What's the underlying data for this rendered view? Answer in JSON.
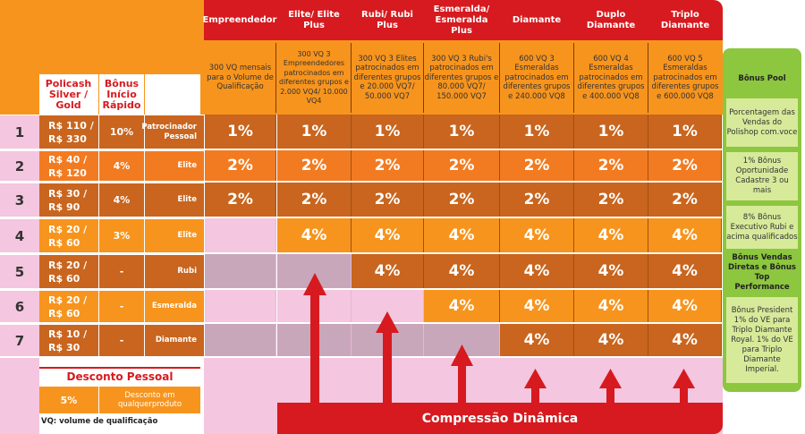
{
  "columns": [
    {
      "name": "Empreendedor",
      "requirement": "300 VQ mensais para o Volume de Qualificação"
    },
    {
      "name": "Elite/ Elite Plus",
      "requirement": "300 VQ 3 Empreendedores patrocinados em diferentes grupos e 2.000 VQ4/ 10.000 VQ4"
    },
    {
      "name": "Rubi/ Rubi Plus",
      "requirement": "300 VQ 3 Elites patrocinados em diferentes grupos e 20.000 VQ7/ 50.000 VQ7"
    },
    {
      "name": "Esmeralda/ Esmeralda Plus",
      "requirement": "300 VQ 3 Rubi's patrocinados em diferentes grupos e 80.000 VQ7/ 150.000 VQ7"
    },
    {
      "name": "Diamante",
      "requirement": "600 VQ 3 Esmeraldas patrocinados em diferentes grupos e 240.000 VQ8"
    },
    {
      "name": "Duplo Diamante",
      "requirement": "600 VQ 4 Esmeraldas patrocinados em diferentes grupos e 400.000 VQ8"
    },
    {
      "name": "Triplo Diamante",
      "requirement": "600 VQ 5 Esmeraldas patrocinados em diferentes grupos e 600.000 VQ8"
    }
  ],
  "left_headers": {
    "policash": "Policash Silver / Gold",
    "bonus_inicio": "Bônus Início Rápido"
  },
  "levels": [
    {
      "level": "1",
      "policash": "R$ 110 / R$ 330",
      "bir": "10%",
      "rank": "Patrocinador Pessoal",
      "values": [
        "1%",
        "1%",
        "1%",
        "1%",
        "1%",
        "1%",
        "1%"
      ]
    },
    {
      "level": "2",
      "policash": "R$ 40 / R$ 120",
      "bir": "4%",
      "rank": "Elite",
      "values": [
        "2%",
        "2%",
        "2%",
        "2%",
        "2%",
        "2%",
        "2%"
      ]
    },
    {
      "level": "3",
      "policash": "R$ 30 / R$ 90",
      "bir": "4%",
      "rank": "Elite",
      "values": [
        "2%",
        "2%",
        "2%",
        "2%",
        "2%",
        "2%",
        "2%"
      ]
    },
    {
      "level": "4",
      "policash": "R$ 20 / R$ 60",
      "bir": "3%",
      "rank": "Elite",
      "values": [
        "",
        "4%",
        "4%",
        "4%",
        "4%",
        "4%",
        "4%"
      ]
    },
    {
      "level": "5",
      "policash": "R$ 20 / R$ 60",
      "bir": "-",
      "rank": "Rubi",
      "values": [
        "",
        "",
        "4%",
        "4%",
        "4%",
        "4%",
        "4%"
      ]
    },
    {
      "level": "6",
      "policash": "R$ 20 / R$ 60",
      "bir": "-",
      "rank": "Esmeralda",
      "values": [
        "",
        "",
        "",
        "4%",
        "4%",
        "4%",
        "4%"
      ]
    },
    {
      "level": "7",
      "policash": "R$ 10 / R$ 30",
      "bir": "-",
      "rank": "Diamante",
      "values": [
        "",
        "",
        "",
        "",
        "4%",
        "4%",
        "4%"
      ]
    }
  ],
  "desconto": {
    "title": "Desconto Pessoal",
    "value": "5%",
    "text": "Desconto em qualquerproduto"
  },
  "footnote": "VQ: volume de qualificação",
  "compressao": "Compressão Dinâmica",
  "bonus_panel": [
    {
      "text": "Bônus Pool",
      "bold": true
    },
    {
      "text": "Porcentagem das Vendas do Polishop com.voce",
      "bold": false
    },
    {
      "text": "1% Bônus Oportunidade Cadastre 3 ou mais",
      "bold": false
    },
    {
      "text": "8% Bônus Executivo Rubi e acima qualificados",
      "bold": false
    },
    {
      "text": "Bônus Vendas Diretas e Bônus Top Performance",
      "bold": true
    },
    {
      "text": "Bônus President 1% do VE para Triplo Diamante Royal. 1% do VE para Triplo Diamante Imperial.",
      "bold": false
    }
  ],
  "colors": {
    "red": "#d61a1f",
    "orange": "#f7941d",
    "dark_orange": "#c9651e",
    "mid_orange": "#f27b21",
    "pink": "#f4c6df",
    "mauve": "#c9a7bb",
    "green": "#8dc63f",
    "light_green": "#d7ea9a"
  }
}
